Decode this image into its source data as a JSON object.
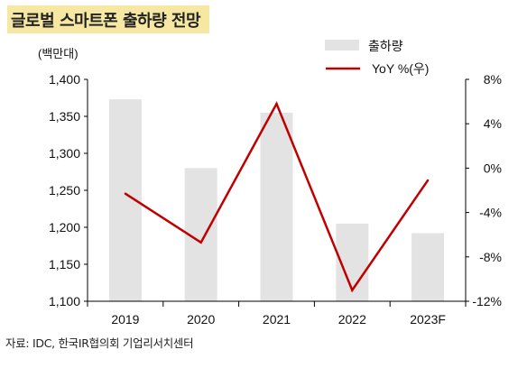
{
  "title": "글로벌 스마트폰 출하량 전망",
  "source": "자료: IDC, 한국IR협의회 기업리서치센터",
  "colors": {
    "bar": "#e3e3e3",
    "line": "#c00000",
    "axis": "#000000",
    "title_bg": "#f6e8a3"
  },
  "chart_data": {
    "type": "bar",
    "unit_label": "(백만대)",
    "categories": [
      "2019",
      "2020",
      "2021",
      "2022",
      "2023F"
    ],
    "series": [
      {
        "name": "출하량",
        "type": "bar",
        "axis": "left",
        "values": [
          1373,
          1280,
          1355,
          1205,
          1192
        ]
      },
      {
        "name": "YoY %(우)",
        "type": "line",
        "axis": "right",
        "values": [
          -2.3,
          -6.7,
          5.8,
          -11.0,
          -1.1
        ]
      }
    ],
    "y_left": {
      "min": 1100,
      "max": 1400,
      "ticks": [
        "1,100",
        "1,150",
        "1,200",
        "1,250",
        "1,300",
        "1,350",
        "1,400"
      ]
    },
    "y_right": {
      "min": -12,
      "max": 8,
      "ticks": [
        "-12%",
        "-8%",
        "-4%",
        "0%",
        "4%",
        "8%"
      ]
    },
    "legend": "top-right",
    "grid": false
  }
}
